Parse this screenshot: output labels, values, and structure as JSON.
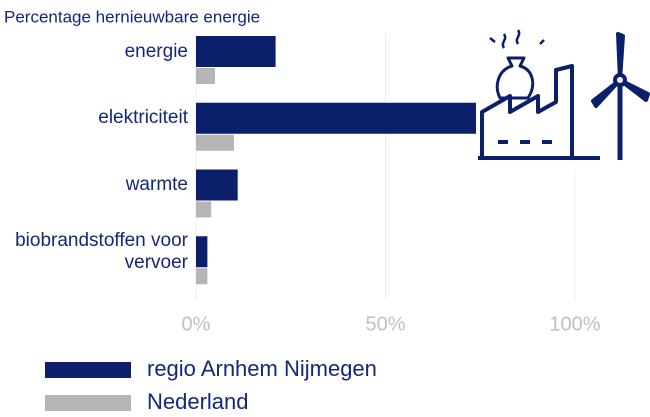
{
  "chart_data": {
    "type": "bar",
    "orientation": "horizontal",
    "subtitle": "Percentage hernieuwbare energie",
    "categories": [
      "energie",
      "elektriciteit",
      "warmte",
      "biobrandstoffen voor vervoer"
    ],
    "series": [
      {
        "name": "regio Arnhem Nijmegen",
        "color": "#0c1f6b",
        "values": [
          21,
          74,
          11,
          3
        ]
      },
      {
        "name": "Nederland",
        "color": "#b5b5b5",
        "values": [
          5,
          10,
          4,
          3
        ]
      }
    ],
    "xlim": [
      0,
      100
    ],
    "xticks": [
      {
        "value": 0,
        "label": "0%"
      },
      {
        "value": 50,
        "label": "50%"
      },
      {
        "value": 100,
        "label": "100%"
      }
    ],
    "grid": true
  }
}
